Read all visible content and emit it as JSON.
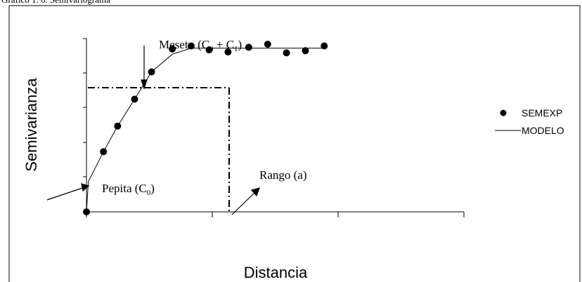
{
  "caption": "Gráfico 1. 6. Semivariograma",
  "axes": {
    "ylabel": "Semivarianza",
    "xlabel": "Distancia"
  },
  "annotations": {
    "meseta": {
      "label": "Meseta",
      "paren_open": "(",
      "c0": "C",
      "c0_sub": "0",
      "plus": " + ",
      "c1": "C",
      "c1_sub": "1",
      "paren_close": ")"
    },
    "pepita": {
      "label": "Pepita",
      "paren_open": " (",
      "c": "C",
      "c_sub": "0",
      "paren_close": ")"
    },
    "rango": {
      "label": "Rango (a)"
    }
  },
  "legend": {
    "items": [
      {
        "label": "SEMEXP",
        "marker": "dot"
      },
      {
        "label": "MODELO",
        "marker": "line"
      }
    ]
  },
  "chart_data": {
    "type": "scatter",
    "title": "",
    "xlabel": "Distancia",
    "ylabel": "Semivarianza",
    "xlim": [
      0,
      4
    ],
    "ylim": [
      0,
      4
    ],
    "grid": false,
    "legend_position": "right",
    "series": [
      {
        "name": "SEMEXP",
        "kind": "points",
        "x": [
          0,
          0.18,
          0.33,
          0.51,
          0.69,
          0.91,
          1.11,
          1.3,
          1.5,
          1.72,
          1.92,
          2.12,
          2.32,
          2.52
        ],
        "y": [
          0,
          1.39,
          1.98,
          2.6,
          3.23,
          3.76,
          3.83,
          3.74,
          3.69,
          3.8,
          3.87,
          3.67,
          3.72,
          3.83
        ]
      },
      {
        "name": "MODELO",
        "kind": "line",
        "x": [
          0,
          0.02,
          0.18,
          0.33,
          0.51,
          0.69,
          0.91,
          1.11,
          1.3,
          2.52
        ],
        "y": [
          0,
          0.7,
          1.39,
          1.98,
          2.6,
          3.23,
          3.64,
          3.78,
          3.78,
          3.78
        ]
      }
    ],
    "reference_lines": {
      "sill": 3.58,
      "range": 1.14
    }
  }
}
